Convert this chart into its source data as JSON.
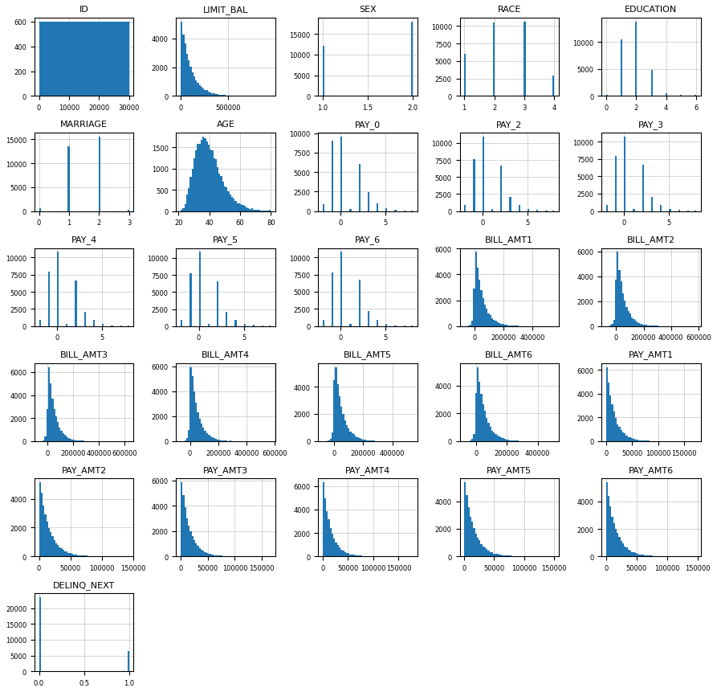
{
  "columns": [
    "ID",
    "LIMIT_BAL",
    "SEX",
    "RACE",
    "EDUCATION",
    "MARRIAGE",
    "AGE",
    "PAY_0",
    "PAY_2",
    "PAY_3",
    "PAY_4",
    "PAY_5",
    "PAY_6",
    "BILL_AMT1",
    "BILL_AMT2",
    "BILL_AMT3",
    "BILL_AMT4",
    "BILL_AMT5",
    "BILL_AMT6",
    "PAY_AMT1",
    "PAY_AMT2",
    "PAY_AMT3",
    "PAY_AMT4",
    "PAY_AMT5",
    "PAY_AMT6",
    "DELINQ_NEXT"
  ],
  "n_rows": 30000,
  "bar_color": "#2077b4",
  "figsize": [
    8.93,
    8.62
  ],
  "n_cols": 5,
  "bins": 50,
  "grid_color": "#aaaaaa",
  "grid_alpha": 0.7,
  "title_fontsize": 8,
  "tick_fontsize": 6
}
